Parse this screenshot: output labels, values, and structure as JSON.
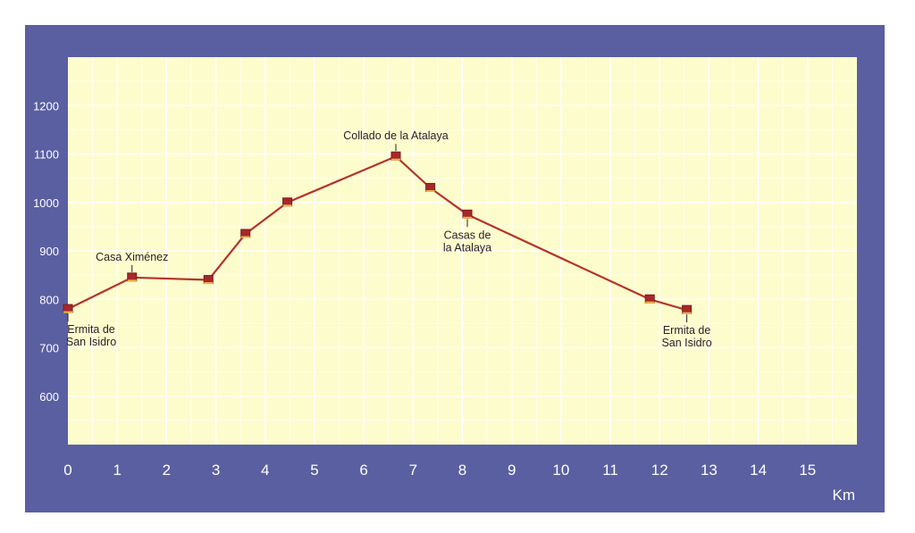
{
  "chart_data": {
    "type": "line",
    "title": "",
    "xlabel": "",
    "ylabel": "",
    "x_unit_label": "Km",
    "xlim": [
      0,
      16
    ],
    "ylim": [
      500,
      1300
    ],
    "x_ticks": [
      "0",
      "1",
      "2",
      "3",
      "4",
      "5",
      "6",
      "7",
      "8",
      "9",
      "10",
      "11",
      "12",
      "13",
      "14",
      "15"
    ],
    "y_ticks": [
      "600",
      "700",
      "800",
      "900",
      "1000",
      "1100",
      "1200"
    ],
    "grid": true,
    "colors": {
      "frame": "#5a5fa2",
      "plot_bg": "#fdfccc",
      "grid": "#ffffff",
      "line": "#b5332b",
      "marker": "#a8282a",
      "marker_edge": "#7a1b1b"
    },
    "series": [
      {
        "x": [
          0,
          1.3,
          2.85,
          3.6,
          4.45,
          6.65,
          7.35,
          8.1,
          11.8,
          12.55
        ],
        "y": [
          780,
          845,
          840,
          935,
          1000,
          1095,
          1030,
          975,
          800,
          778
        ]
      }
    ],
    "annotations": [
      {
        "text": [
          "Ermita de",
          "San Isidro"
        ],
        "x": 0,
        "y": 780,
        "pos": "below"
      },
      {
        "text": [
          "Casa Ximénez"
        ],
        "x": 1.3,
        "y": 845,
        "pos": "above"
      },
      {
        "text": [
          "Collado de la Atalaya"
        ],
        "x": 6.65,
        "y": 1095,
        "pos": "above"
      },
      {
        "text": [
          "Casas de",
          "la Atalaya"
        ],
        "x": 8.1,
        "y": 975,
        "pos": "below"
      },
      {
        "text": [
          "Ermita de",
          "San Isidro"
        ],
        "x": 12.55,
        "y": 778,
        "pos": "below"
      }
    ]
  }
}
